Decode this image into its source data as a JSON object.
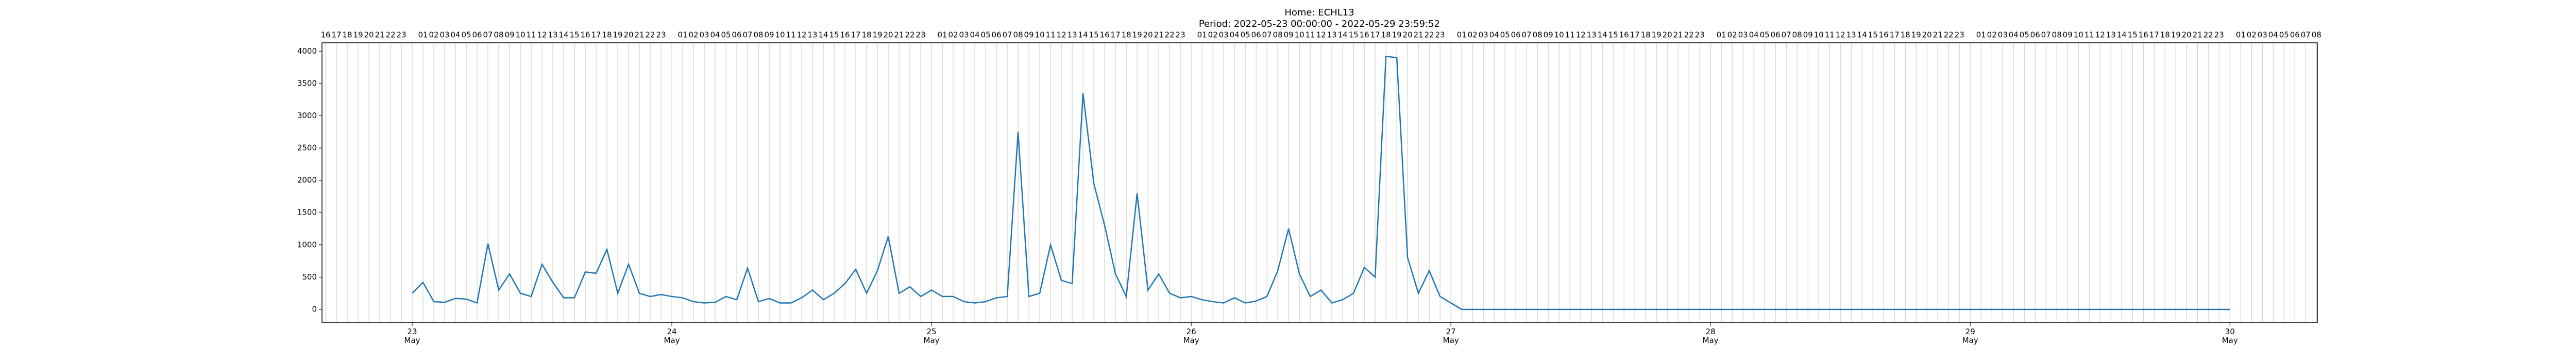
{
  "chart_data": {
    "type": "line",
    "title": "Home: ECHL13",
    "subtitle": "Period: 2022-05-23 00:00:00 - 2022-05-29 23:59:52",
    "x": [
      "2022-05-23 00:00",
      "2022-05-23 01:00",
      "2022-05-23 02:00",
      "2022-05-23 03:00",
      "2022-05-23 04:00",
      "2022-05-23 05:00",
      "2022-05-23 06:00",
      "2022-05-23 07:00",
      "2022-05-23 08:00",
      "2022-05-23 09:00",
      "2022-05-23 10:00",
      "2022-05-23 11:00",
      "2022-05-23 12:00",
      "2022-05-23 13:00",
      "2022-05-23 14:00",
      "2022-05-23 15:00",
      "2022-05-23 16:00",
      "2022-05-23 17:00",
      "2022-05-23 18:00",
      "2022-05-23 19:00",
      "2022-05-23 20:00",
      "2022-05-23 21:00",
      "2022-05-23 22:00",
      "2022-05-23 23:00",
      "2022-05-24 00:00",
      "2022-05-24 01:00",
      "2022-05-24 02:00",
      "2022-05-24 03:00",
      "2022-05-24 04:00",
      "2022-05-24 05:00",
      "2022-05-24 06:00",
      "2022-05-24 07:00",
      "2022-05-24 08:00",
      "2022-05-24 09:00",
      "2022-05-24 10:00",
      "2022-05-24 11:00",
      "2022-05-24 12:00",
      "2022-05-24 13:00",
      "2022-05-24 14:00",
      "2022-05-24 15:00",
      "2022-05-24 16:00",
      "2022-05-24 17:00",
      "2022-05-24 18:00",
      "2022-05-24 19:00",
      "2022-05-24 20:00",
      "2022-05-24 21:00",
      "2022-05-24 22:00",
      "2022-05-24 23:00",
      "2022-05-25 00:00",
      "2022-05-25 01:00",
      "2022-05-25 02:00",
      "2022-05-25 03:00",
      "2022-05-25 04:00",
      "2022-05-25 05:00",
      "2022-05-25 06:00",
      "2022-05-25 07:00",
      "2022-05-25 08:00",
      "2022-05-25 09:00",
      "2022-05-25 10:00",
      "2022-05-25 11:00",
      "2022-05-25 12:00",
      "2022-05-25 13:00",
      "2022-05-25 14:00",
      "2022-05-25 15:00",
      "2022-05-25 16:00",
      "2022-05-25 17:00",
      "2022-05-25 18:00",
      "2022-05-25 19:00",
      "2022-05-25 20:00",
      "2022-05-25 21:00",
      "2022-05-25 22:00",
      "2022-05-25 23:00",
      "2022-05-26 00:00",
      "2022-05-26 01:00",
      "2022-05-26 02:00",
      "2022-05-26 03:00",
      "2022-05-26 04:00",
      "2022-05-26 05:00",
      "2022-05-26 06:00",
      "2022-05-26 07:00",
      "2022-05-26 08:00",
      "2022-05-26 09:00",
      "2022-05-26 10:00",
      "2022-05-26 11:00",
      "2022-05-26 12:00",
      "2022-05-26 13:00",
      "2022-05-26 14:00",
      "2022-05-26 15:00",
      "2022-05-26 16:00",
      "2022-05-26 17:00",
      "2022-05-26 18:00",
      "2022-05-26 19:00",
      "2022-05-26 20:00",
      "2022-05-26 21:00",
      "2022-05-26 22:00",
      "2022-05-26 23:00",
      "2022-05-27 00:00",
      "2022-05-27 01:00",
      "2022-05-30 00:00"
    ],
    "series": [
      {
        "color": "#1f77b4",
        "values": [
          250,
          420,
          120,
          110,
          170,
          160,
          100,
          1020,
          300,
          550,
          250,
          200,
          700,
          420,
          180,
          180,
          580,
          560,
          930,
          250,
          700,
          250,
          200,
          230,
          200,
          180,
          120,
          100,
          110,
          200,
          150,
          640,
          120,
          170,
          100,
          100,
          180,
          300,
          150,
          250,
          400,
          620,
          250,
          600,
          1130,
          250,
          350,
          200,
          300,
          200,
          200,
          120,
          100,
          120,
          180,
          200,
          2750,
          200,
          250,
          1000,
          450,
          400,
          3350,
          1950,
          1300,
          550,
          200,
          1800,
          300,
          550,
          250,
          180,
          200,
          150,
          120,
          100,
          180,
          100,
          130,
          200,
          600,
          1250,
          550,
          200,
          300,
          100,
          150,
          250,
          650,
          500,
          3920,
          3900,
          800,
          250,
          600,
          200,
          100,
          0,
          0
        ]
      }
    ],
    "xlim": [
      "2022-05-22 15:40",
      "2022-05-30 08:05"
    ],
    "xticks": [
      {
        "value": "2022-05-23 00:00",
        "label": "23\nMay"
      },
      {
        "value": "2022-05-24 00:00",
        "label": "24\nMay"
      },
      {
        "value": "2022-05-25 00:00",
        "label": "25\nMay"
      },
      {
        "value": "2022-05-26 00:00",
        "label": "26\nMay"
      },
      {
        "value": "2022-05-27 00:00",
        "label": "27\nMay"
      },
      {
        "value": "2022-05-28 00:00",
        "label": "28\nMay"
      },
      {
        "value": "2022-05-29 00:00",
        "label": "29\nMay"
      },
      {
        "value": "2022-05-30 00:00",
        "label": "30\nMay"
      }
    ],
    "hour_labels": [
      null,
      "01",
      "02",
      "03",
      "04",
      "05",
      "06",
      "07",
      "08",
      "09",
      "10",
      "11",
      "12",
      "13",
      "14",
      "15",
      "16",
      "17",
      "18",
      "19",
      "20",
      "21",
      "22",
      "23"
    ],
    "ylim": [
      -200,
      4130
    ],
    "yticks": [
      0,
      500,
      1000,
      1500,
      2000,
      2500,
      3000,
      3500,
      4000
    ],
    "grid": true
  }
}
